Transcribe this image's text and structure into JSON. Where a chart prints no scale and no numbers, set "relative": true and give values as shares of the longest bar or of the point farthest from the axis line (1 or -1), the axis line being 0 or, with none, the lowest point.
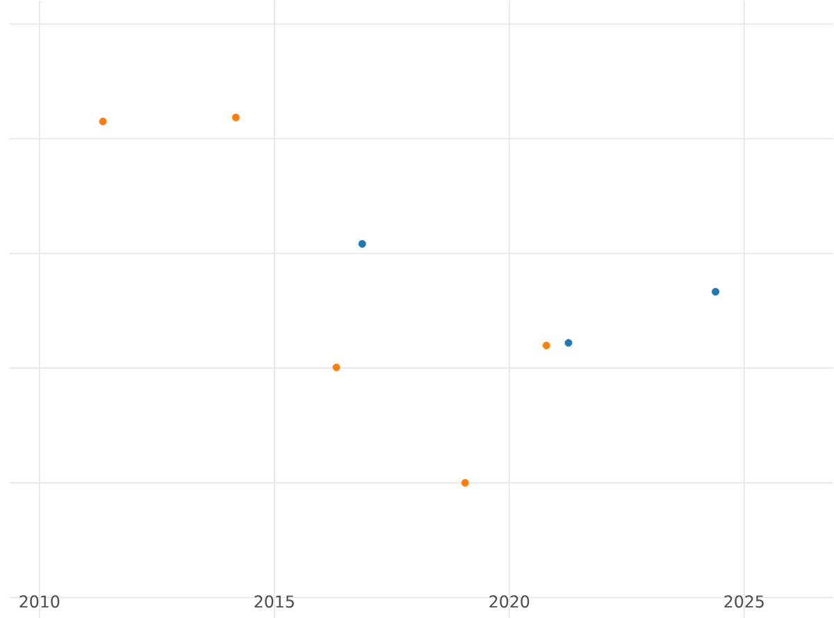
{
  "chart_data": {
    "type": "scatter",
    "relative": true,
    "xlim": [
      2009.36,
      2026.9
    ],
    "xticks": [
      2010,
      2015,
      2020,
      2025
    ],
    "grid": true,
    "marker": "circle",
    "series": [
      {
        "color": "#1f77b4",
        "x": [
          2016.87,
          2021.26,
          2024.39
        ],
        "values": [
          0.654,
          0.383,
          0.523
        ]
      },
      {
        "color": "#ff7f0e",
        "x": [
          2011.35,
          2014.18,
          2016.32,
          2019.06,
          2020.79
        ],
        "values": [
          0.989,
          1,
          0.316,
          0,
          0.376
        ]
      }
    ]
  }
}
